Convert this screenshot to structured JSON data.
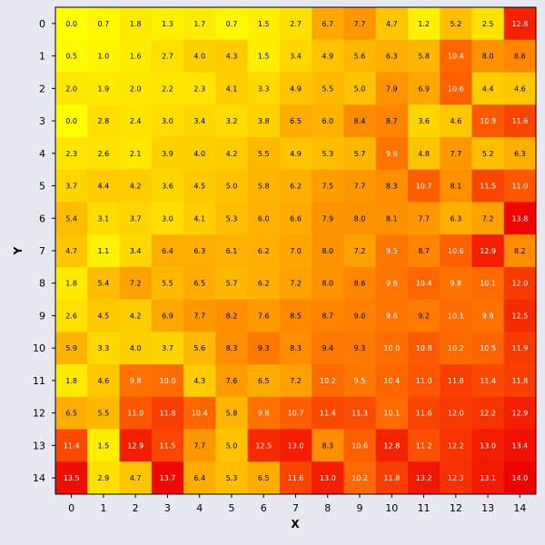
{
  "chart_data": {
    "type": "heatmap",
    "title": "",
    "xlabel": "X",
    "ylabel": "Y",
    "x_categories": [
      "0",
      "1",
      "2",
      "3",
      "4",
      "5",
      "6",
      "7",
      "8",
      "9",
      "10",
      "11",
      "12",
      "13",
      "14"
    ],
    "y_categories": [
      "0",
      "1",
      "2",
      "3",
      "4",
      "5",
      "6",
      "7",
      "8",
      "9",
      "10",
      "11",
      "12",
      "13",
      "14"
    ],
    "y_order": "top-to-bottom",
    "value_range": [
      0,
      14
    ],
    "colormap": [
      "#ffff00",
      "#ffd700",
      "#ffa500",
      "#ff6400",
      "#ee0000"
    ],
    "values": [
      [
        0.0,
        0.7,
        1.8,
        1.3,
        1.7,
        0.7,
        1.5,
        2.7,
        6.7,
        7.7,
        4.7,
        1.2,
        5.2,
        2.5,
        12.8
      ],
      [
        0.5,
        1.0,
        1.6,
        2.7,
        4.0,
        4.3,
        1.5,
        3.4,
        4.9,
        5.6,
        6.3,
        5.8,
        10.4,
        8.0,
        8.6
      ],
      [
        2.0,
        1.9,
        2.0,
        2.2,
        2.3,
        4.1,
        3.3,
        4.9,
        5.5,
        5.0,
        7.9,
        6.9,
        10.6,
        4.4,
        4.6
      ],
      [
        0.0,
        2.8,
        2.4,
        3.0,
        3.4,
        3.2,
        3.8,
        6.5,
        6.0,
        8.4,
        8.7,
        3.6,
        4.6,
        10.9,
        11.6
      ],
      [
        2.3,
        2.6,
        2.1,
        3.9,
        4.0,
        4.2,
        5.5,
        4.9,
        5.3,
        5.7,
        9.6,
        4.8,
        7.7,
        5.2,
        6.3
      ],
      [
        3.7,
        4.4,
        4.2,
        3.6,
        4.5,
        5.0,
        5.8,
        6.2,
        7.5,
        7.7,
        8.3,
        10.7,
        8.1,
        11.5,
        11.0
      ],
      [
        5.4,
        3.1,
        3.7,
        3.0,
        4.1,
        5.3,
        6.0,
        6.6,
        7.9,
        8.0,
        8.1,
        7.7,
        6.3,
        7.2,
        13.8
      ],
      [
        4.7,
        1.1,
        3.4,
        6.4,
        6.3,
        6.1,
        6.2,
        7.0,
        8.0,
        7.2,
        9.5,
        8.7,
        10.6,
        12.9,
        8.2
      ],
      [
        1.8,
        5.4,
        7.2,
        5.5,
        6.5,
        5.7,
        6.2,
        7.2,
        8.0,
        8.6,
        9.6,
        10.4,
        9.8,
        10.1,
        12.0
      ],
      [
        2.6,
        4.5,
        4.2,
        6.9,
        7.7,
        8.2,
        7.6,
        8.5,
        8.7,
        9.0,
        9.6,
        9.2,
        10.1,
        9.8,
        12.5
      ],
      [
        5.9,
        3.3,
        4.0,
        3.7,
        5.6,
        8.3,
        9.3,
        8.3,
        9.4,
        9.3,
        10.0,
        10.8,
        10.2,
        10.5,
        11.9
      ],
      [
        1.8,
        4.6,
        9.8,
        10.0,
        4.3,
        7.6,
        6.5,
        7.2,
        10.2,
        9.5,
        10.4,
        11.0,
        11.8,
        11.4,
        11.8
      ],
      [
        6.5,
        5.5,
        11.0,
        11.8,
        10.4,
        5.8,
        9.8,
        10.7,
        11.4,
        11.3,
        10.1,
        11.6,
        12.0,
        12.2,
        12.9
      ],
      [
        11.4,
        1.5,
        12.9,
        11.5,
        7.7,
        5.0,
        12.5,
        13.0,
        8.3,
        10.6,
        12.8,
        11.2,
        12.2,
        13.0,
        13.4
      ],
      [
        13.5,
        2.9,
        4.7,
        13.7,
        6.4,
        5.3,
        6.5,
        11.6,
        13.0,
        10.2,
        11.8,
        13.2,
        12.3,
        13.1,
        14.0
      ]
    ]
  }
}
